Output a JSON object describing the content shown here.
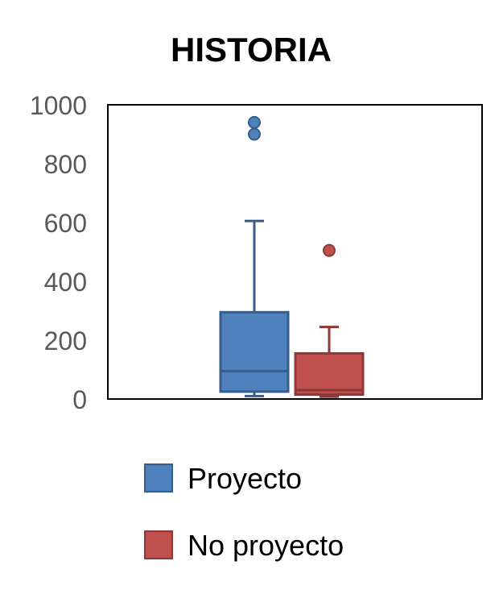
{
  "chart_data": {
    "type": "box",
    "title": "HISTORIA",
    "xlabel": "",
    "ylabel": "",
    "ylim": [
      0,
      1000
    ],
    "yticks": [
      0,
      200,
      400,
      600,
      800,
      1000
    ],
    "grid": false,
    "legend": "bottom",
    "series": [
      {
        "name": "Proyecto",
        "color": "#4f81bd",
        "border": "#385d8a",
        "min": 10,
        "q1": 25,
        "median": 95,
        "q3": 295,
        "max": 605,
        "outliers": [
          900,
          940
        ]
      },
      {
        "name": "No proyecto",
        "color": "#c0504d",
        "border": "#8c3836",
        "min": 8,
        "q1": 15,
        "median": 30,
        "q3": 155,
        "max": 245,
        "outliers": [
          505
        ]
      }
    ]
  }
}
